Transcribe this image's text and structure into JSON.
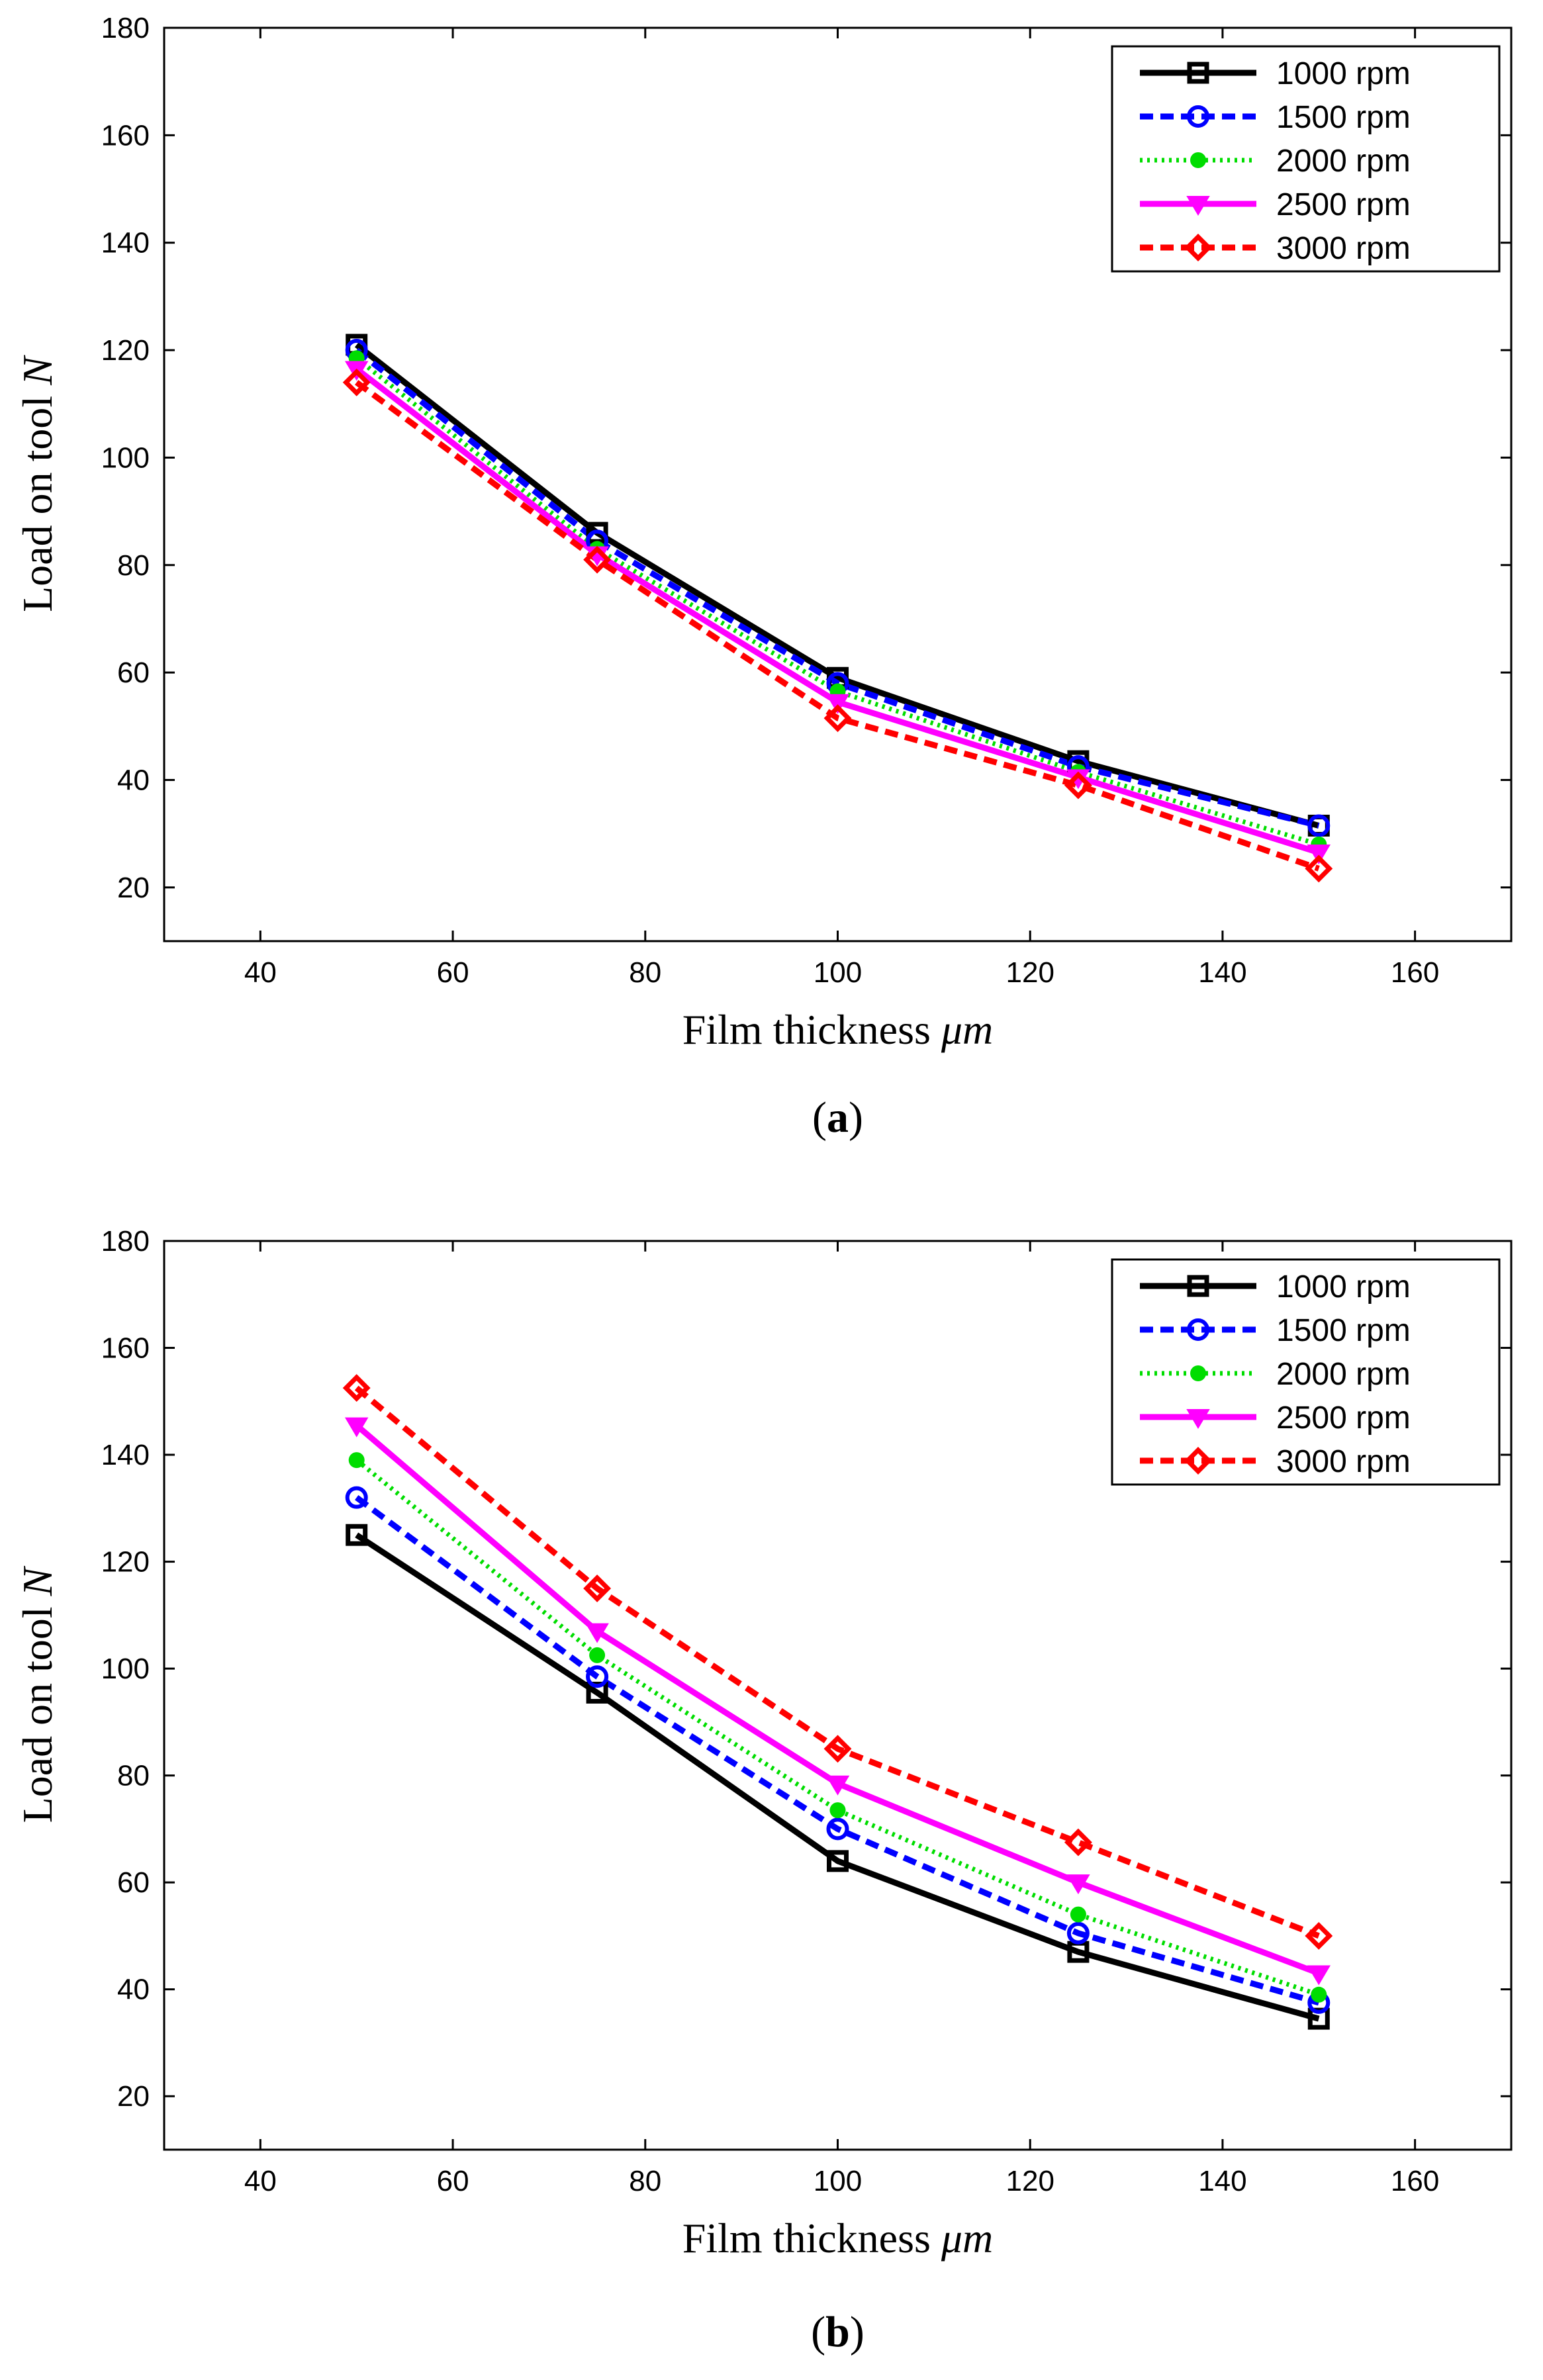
{
  "chart_data": [
    {
      "type": "line",
      "panel_label": "a",
      "xlabel": "Film thickness",
      "xlabel_unit": "μm",
      "ylabel": "Load on tool",
      "ylabel_unit": "N",
      "xlim": [
        30,
        170
      ],
      "ylim": [
        10,
        180
      ],
      "xticks": [
        40,
        60,
        80,
        100,
        120,
        140,
        160
      ],
      "yticks": [
        20,
        40,
        60,
        80,
        100,
        120,
        140,
        160,
        180
      ],
      "x": [
        50,
        75,
        100,
        125,
        150
      ],
      "legend_position": "top-right",
      "series": [
        {
          "name": "1000 rpm",
          "color": "#000000",
          "dash": "solid",
          "marker": "square",
          "values": [
            121,
            86,
            59,
            43.5,
            31.5
          ]
        },
        {
          "name": "1500 rpm",
          "color": "#0000ff",
          "dash": "dashed",
          "marker": "circle",
          "values": [
            120,
            84.5,
            58,
            42.5,
            31.5
          ]
        },
        {
          "name": "2000 rpm",
          "color": "#00dd00",
          "dash": "dotted",
          "marker": "dot",
          "values": [
            118.5,
            83,
            56.5,
            41.5,
            28
          ]
        },
        {
          "name": "2500 rpm",
          "color": "#ff00ff",
          "dash": "solid",
          "marker": "triangle-down",
          "values": [
            116.5,
            82,
            54.5,
            40.5,
            26.5
          ]
        },
        {
          "name": "3000 rpm",
          "color": "#ff0000",
          "dash": "dashed",
          "marker": "diamond",
          "values": [
            114,
            81,
            51.5,
            39,
            23.5
          ]
        }
      ]
    },
    {
      "type": "line",
      "panel_label": "b",
      "xlabel": "Film thickness",
      "xlabel_unit": "μm",
      "ylabel": "Load on tool",
      "ylabel_unit": "N",
      "xlim": [
        30,
        170
      ],
      "ylim": [
        10,
        180
      ],
      "xticks": [
        40,
        60,
        80,
        100,
        120,
        140,
        160
      ],
      "yticks": [
        20,
        40,
        60,
        80,
        100,
        120,
        140,
        160,
        180
      ],
      "x": [
        50,
        75,
        100,
        125,
        150
      ],
      "legend_position": "top-right",
      "series": [
        {
          "name": "1000 rpm",
          "color": "#000000",
          "dash": "solid",
          "marker": "square",
          "values": [
            125,
            95.5,
            64,
            47,
            34.5
          ]
        },
        {
          "name": "1500 rpm",
          "color": "#0000ff",
          "dash": "dashed",
          "marker": "circle",
          "values": [
            132,
            98.5,
            70,
            50.5,
            37.5
          ]
        },
        {
          "name": "2000 rpm",
          "color": "#00dd00",
          "dash": "dotted",
          "marker": "dot",
          "values": [
            139,
            102.5,
            73.5,
            54,
            39
          ]
        },
        {
          "name": "2500 rpm",
          "color": "#ff00ff",
          "dash": "solid",
          "marker": "triangle-down",
          "values": [
            145.5,
            107,
            78.5,
            60,
            43
          ]
        },
        {
          "name": "3000 rpm",
          "color": "#ff0000",
          "dash": "dashed",
          "marker": "diamond",
          "values": [
            152.5,
            115,
            85,
            67.5,
            50
          ]
        }
      ]
    }
  ]
}
